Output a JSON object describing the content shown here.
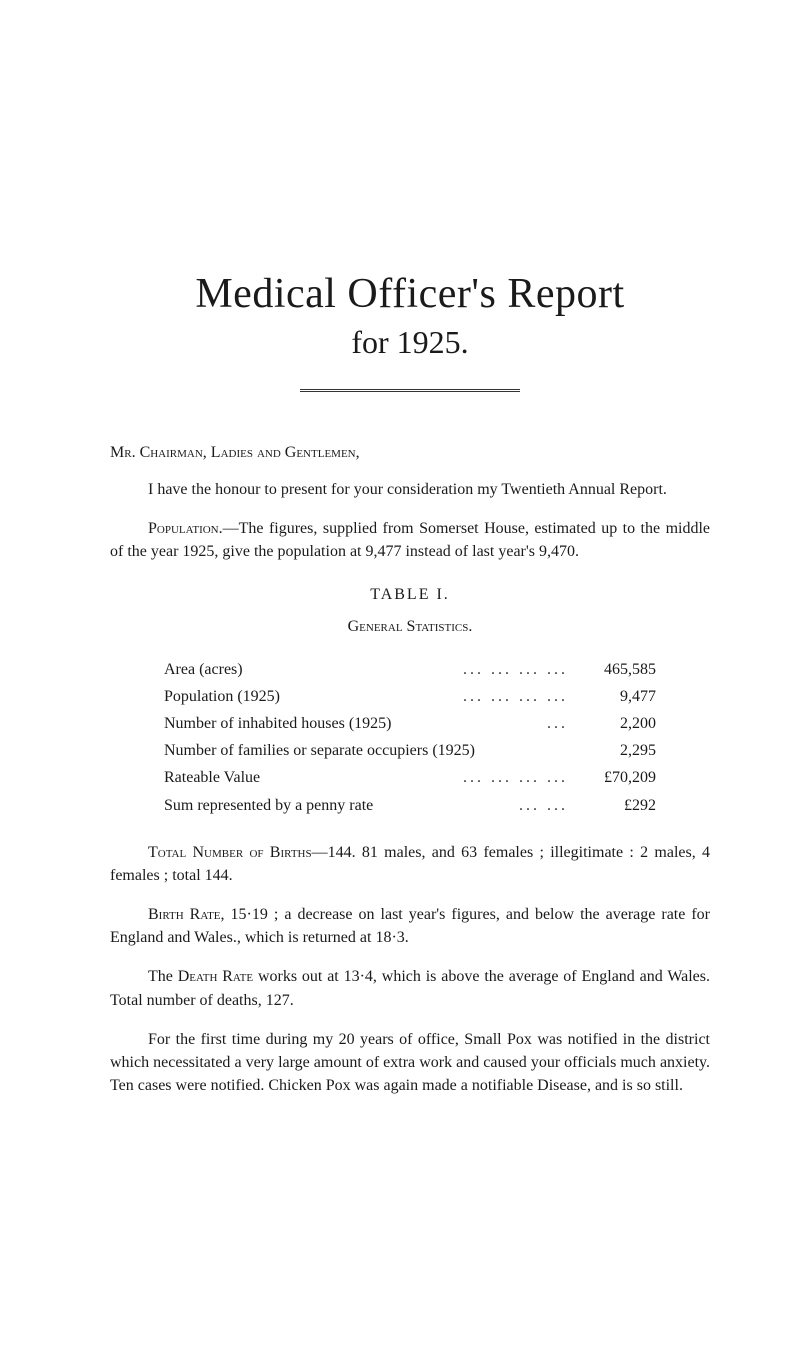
{
  "colors": {
    "background": "#ffffff",
    "text": "#1a1a1a",
    "rule": "#333333"
  },
  "typography": {
    "body_font": "Georgia, Times New Roman, serif",
    "body_size_pt": 12,
    "title_size_pt": 32,
    "subtitle_size_pt": 24
  },
  "title": {
    "main": "Medical Officer's Report",
    "sub": "for 1925."
  },
  "salutation": {
    "prefix": "Mr. Chairman, Ladies and Gentlemen,"
  },
  "paragraphs": {
    "intro": "I have the honour to present for your consideration my Twentieth Annual Report.",
    "population_label": "Population.",
    "population_text": "—The figures, supplied from Somerset House, estimated up to the middle of the year 1925, give the population at 9,477 instead of last year's 9,470."
  },
  "table1": {
    "heading": "TABLE I.",
    "subheading": "General Statistics.",
    "rows": [
      {
        "label": "Area (acres)",
        "value": "465,585"
      },
      {
        "label": "Population (1925)",
        "value": "9,477"
      },
      {
        "label": "Number of inhabited houses (1925)",
        "value": "2,200"
      },
      {
        "label": "Number of families or separate occupiers (1925)",
        "value": "2,295"
      },
      {
        "label": "Rateable Value",
        "value": "£70,209"
      },
      {
        "label": "Sum represented by a penny rate",
        "value": "£292"
      }
    ]
  },
  "births": {
    "label": "Total Number of Births",
    "text": "—144. 81 males, and 63 females ; illegitimate : 2 males, 4 females ; total 144."
  },
  "birth_rate": {
    "label": "Birth Rate,",
    "text": " 15·19 ; a decrease on last year's figures, and below the average rate for England and Wales., which is returned at 18·3."
  },
  "death_rate": {
    "prefix": "The ",
    "label": "Death Rate",
    "text": " works out at 13·4, which is above the average of England and Wales. Total number of deaths, 127."
  },
  "smallpox": "For the first time during my 20 years of office, Small Pox was notified in the district which necessitated a very large amount of extra work and caused your officials much anxiety. Ten cases were notified. Chicken Pox was again made a notifiable Disease, and is so still."
}
